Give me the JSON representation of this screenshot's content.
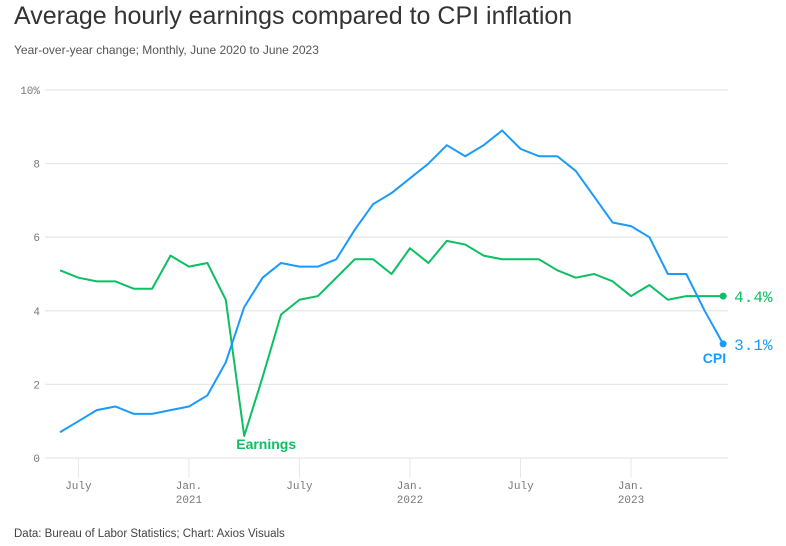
{
  "header": {
    "title": "Average hourly earnings compared to CPI inflation",
    "subtitle": "Year-over-year change; Monthly, June 2020 to June 2023"
  },
  "footer": {
    "source": "Data: Bureau of Labor Statistics; Chart: Axios Visuals"
  },
  "chart_data": {
    "type": "line",
    "title": "Average hourly earnings compared to CPI inflation",
    "subtitle": "Year-over-year change; Monthly, June 2020 to June 2023",
    "x_start": "2020-06",
    "x_end": "2023-06",
    "ylim": [
      0,
      10
    ],
    "grid": true,
    "y_ticks": [
      "0",
      "2",
      "4",
      "6",
      "8",
      "10%"
    ],
    "y_tick_values": [
      0,
      2,
      4,
      6,
      8,
      10
    ],
    "x_ticks": [
      {
        "month": "2020-07",
        "label": "July",
        "year": ""
      },
      {
        "month": "2021-01",
        "label": "Jan.",
        "year": "2021"
      },
      {
        "month": "2021-07",
        "label": "July",
        "year": ""
      },
      {
        "month": "2022-01",
        "label": "Jan.",
        "year": "2022"
      },
      {
        "month": "2022-07",
        "label": "July",
        "year": ""
      },
      {
        "month": "2023-01",
        "label": "Jan.",
        "year": "2023"
      }
    ],
    "series": [
      {
        "name": "CPI",
        "color": "#1a9bfc",
        "end_label": "3.1%",
        "values": [
          0.7,
          1.0,
          1.3,
          1.4,
          1.2,
          1.2,
          1.3,
          1.4,
          1.7,
          2.6,
          4.1,
          4.9,
          5.3,
          5.2,
          5.2,
          5.4,
          6.2,
          6.9,
          7.2,
          7.6,
          8.0,
          8.5,
          8.2,
          8.5,
          8.9,
          8.4,
          8.2,
          8.2,
          7.8,
          7.1,
          6.4,
          6.3,
          6.0,
          5.0,
          5.0,
          4.0,
          3.1
        ]
      },
      {
        "name": "Earnings",
        "color": "#0cbf62",
        "end_label": "4.4%",
        "values": [
          5.1,
          4.9,
          4.8,
          4.8,
          4.6,
          4.6,
          5.5,
          5.2,
          5.3,
          4.3,
          0.6,
          2.2,
          3.9,
          4.3,
          4.4,
          4.9,
          5.4,
          5.4,
          5.0,
          5.7,
          5.3,
          5.9,
          5.8,
          5.5,
          5.4,
          5.4,
          5.4,
          5.1,
          4.9,
          5.0,
          4.8,
          4.4,
          4.7,
          4.3,
          4.4,
          4.4,
          4.4
        ]
      }
    ]
  }
}
